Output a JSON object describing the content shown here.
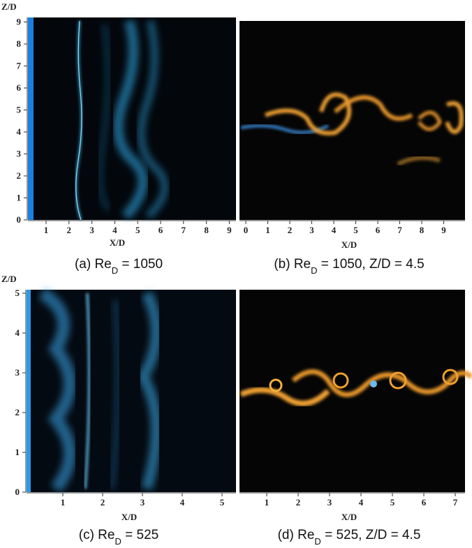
{
  "panels": [
    {
      "y_axis_label": "Z/D",
      "x_axis_label": "X/D",
      "yticks": [
        0,
        1,
        2,
        3,
        4,
        5,
        6,
        7,
        8,
        9
      ],
      "xticks": [
        1,
        2,
        3,
        4,
        5,
        6,
        7,
        8,
        9
      ],
      "caption": {
        "text": "(a) Re",
        "sub": "D",
        "rest": " = 1050"
      }
    },
    {
      "x_axis_label": "X/D",
      "xticks": [
        0,
        1,
        2,
        3,
        4,
        5,
        6,
        7,
        8,
        9
      ],
      "caption": {
        "text": "(b) Re",
        "sub": "D",
        "rest": " = 1050, Z/D = 4.5"
      }
    },
    {
      "y_axis_label": "Z/D",
      "x_axis_label": "X/D",
      "yticks": [
        0,
        1,
        2,
        3,
        4,
        5
      ],
      "xticks": [
        1,
        2,
        3,
        4,
        5
      ],
      "caption": {
        "text": "(c) Re",
        "sub": "D",
        "rest": " = 525"
      }
    },
    {
      "x_axis_label": "X/D",
      "xticks": [
        1,
        2,
        3,
        4,
        5,
        6,
        7
      ],
      "caption": {
        "text": "(d) Re",
        "sub": "D",
        "rest": " = 525, Z/D = 4.5"
      }
    }
  ]
}
